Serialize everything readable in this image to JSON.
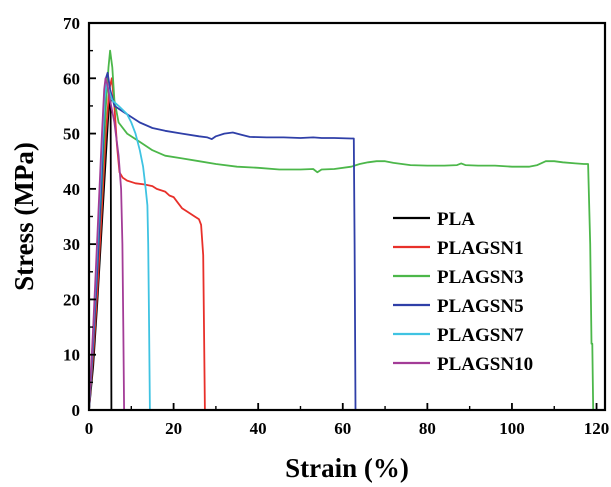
{
  "chart_data": {
    "type": "line",
    "title": "",
    "xlabel": "Strain (%)",
    "ylabel": "Stress (MPa)",
    "xlim": [
      0,
      122
    ],
    "ylim": [
      0,
      70
    ],
    "xticks": [
      0,
      20,
      40,
      60,
      80,
      100,
      120
    ],
    "yticks": [
      0,
      10,
      20,
      30,
      40,
      50,
      60,
      70
    ],
    "grid": false,
    "legend_position": "right-center",
    "series": [
      {
        "name": "PLA",
        "color": "#000000",
        "points": [
          [
            0,
            0
          ],
          [
            1,
            8
          ],
          [
            2,
            20
          ],
          [
            3,
            33
          ],
          [
            4,
            46
          ],
          [
            4.6,
            54
          ],
          [
            4.9,
            56
          ],
          [
            5.1,
            56
          ],
          [
            5.2,
            30
          ],
          [
            5.3,
            0
          ]
        ]
      },
      {
        "name": "PLAGSN1",
        "color": "#e8302a",
        "points": [
          [
            0,
            0
          ],
          [
            1,
            10
          ],
          [
            2,
            22
          ],
          [
            3,
            36
          ],
          [
            4,
            50
          ],
          [
            4.8,
            58
          ],
          [
            5.4,
            60
          ],
          [
            6,
            55
          ],
          [
            6.6,
            48
          ],
          [
            7.2,
            43
          ],
          [
            8,
            42
          ],
          [
            9,
            41.5
          ],
          [
            11,
            41
          ],
          [
            13,
            40.8
          ],
          [
            15,
            40.5
          ],
          [
            16,
            40
          ],
          [
            18,
            39.5
          ],
          [
            19,
            38.8
          ],
          [
            20,
            38.5
          ],
          [
            21,
            37.5
          ],
          [
            22,
            36.5
          ],
          [
            23,
            36
          ],
          [
            24,
            35.5
          ],
          [
            25,
            35
          ],
          [
            26,
            34.5
          ],
          [
            26.5,
            33.5
          ],
          [
            27,
            28
          ],
          [
            27.2,
            15
          ],
          [
            27.4,
            0
          ]
        ]
      },
      {
        "name": "PLAGSN3",
        "color": "#4cb74a",
        "points": [
          [
            0,
            0
          ],
          [
            1,
            12
          ],
          [
            2,
            26
          ],
          [
            3,
            40
          ],
          [
            4,
            55
          ],
          [
            4.6,
            62
          ],
          [
            5,
            65
          ],
          [
            5.5,
            62
          ],
          [
            6,
            56
          ],
          [
            7,
            52
          ],
          [
            9,
            50
          ],
          [
            12,
            48.5
          ],
          [
            15,
            47
          ],
          [
            18,
            46
          ],
          [
            22,
            45.5
          ],
          [
            26,
            45
          ],
          [
            30,
            44.5
          ],
          [
            35,
            44
          ],
          [
            40,
            43.8
          ],
          [
            45,
            43.5
          ],
          [
            50,
            43.5
          ],
          [
            53,
            43.6
          ],
          [
            54,
            43
          ],
          [
            55,
            43.5
          ],
          [
            58,
            43.6
          ],
          [
            62,
            44
          ],
          [
            64,
            44.5
          ],
          [
            66,
            44.8
          ],
          [
            68,
            45
          ],
          [
            70,
            45
          ],
          [
            72,
            44.7
          ],
          [
            76,
            44.3
          ],
          [
            80,
            44.2
          ],
          [
            84,
            44.2
          ],
          [
            87,
            44.3
          ],
          [
            88,
            44.6
          ],
          [
            89,
            44.3
          ],
          [
            92,
            44.2
          ],
          [
            96,
            44.2
          ],
          [
            100,
            44
          ],
          [
            104,
            44
          ],
          [
            106,
            44.3
          ],
          [
            108,
            45
          ],
          [
            110,
            45
          ],
          [
            112,
            44.8
          ],
          [
            115,
            44.6
          ],
          [
            117,
            44.5
          ],
          [
            118,
            44.5
          ],
          [
            118.5,
            30
          ],
          [
            118.8,
            12
          ],
          [
            119,
            12
          ],
          [
            119.2,
            0
          ]
        ]
      },
      {
        "name": "PLAGSN5",
        "color": "#2f3fa8",
        "points": [
          [
            0,
            0
          ],
          [
            1,
            12
          ],
          [
            2,
            26
          ],
          [
            3,
            42
          ],
          [
            3.6,
            54
          ],
          [
            4,
            60
          ],
          [
            4.4,
            61
          ],
          [
            5,
            58
          ],
          [
            6,
            55
          ],
          [
            8,
            54
          ],
          [
            10,
            53
          ],
          [
            12,
            52
          ],
          [
            15,
            51
          ],
          [
            18,
            50.5
          ],
          [
            22,
            50
          ],
          [
            26,
            49.5
          ],
          [
            28,
            49.3
          ],
          [
            29,
            49
          ],
          [
            30,
            49.5
          ],
          [
            32,
            50
          ],
          [
            34,
            50.2
          ],
          [
            36,
            49.8
          ],
          [
            38,
            49.4
          ],
          [
            42,
            49.3
          ],
          [
            46,
            49.3
          ],
          [
            50,
            49.2
          ],
          [
            53,
            49.3
          ],
          [
            55,
            49.2
          ],
          [
            58,
            49.2
          ],
          [
            62,
            49.1
          ],
          [
            62.6,
            49.1
          ],
          [
            62.8,
            30
          ],
          [
            63,
            0
          ]
        ]
      },
      {
        "name": "PLAGSN7",
        "color": "#3fc3e2",
        "points": [
          [
            0,
            0
          ],
          [
            1,
            14
          ],
          [
            2,
            30
          ],
          [
            3,
            46
          ],
          [
            3.7,
            56
          ],
          [
            4.1,
            59
          ],
          [
            4.6,
            58
          ],
          [
            5.5,
            56
          ],
          [
            7,
            55
          ],
          [
            9,
            53.5
          ],
          [
            10,
            52
          ],
          [
            11,
            50
          ],
          [
            12,
            47
          ],
          [
            12.8,
            44
          ],
          [
            13.4,
            40
          ],
          [
            13.8,
            37
          ],
          [
            14,
            30
          ],
          [
            14.2,
            15
          ],
          [
            14.4,
            0
          ]
        ]
      },
      {
        "name": "PLAGSN10",
        "color": "#a33c97",
        "points": [
          [
            0,
            0
          ],
          [
            1,
            15
          ],
          [
            2,
            32
          ],
          [
            3,
            49
          ],
          [
            3.6,
            58
          ],
          [
            3.9,
            60
          ],
          [
            4.3,
            59
          ],
          [
            5,
            56
          ],
          [
            6,
            52
          ],
          [
            7,
            46
          ],
          [
            7.6,
            40
          ],
          [
            7.9,
            30
          ],
          [
            8.1,
            15
          ],
          [
            8.3,
            0
          ]
        ]
      }
    ]
  }
}
